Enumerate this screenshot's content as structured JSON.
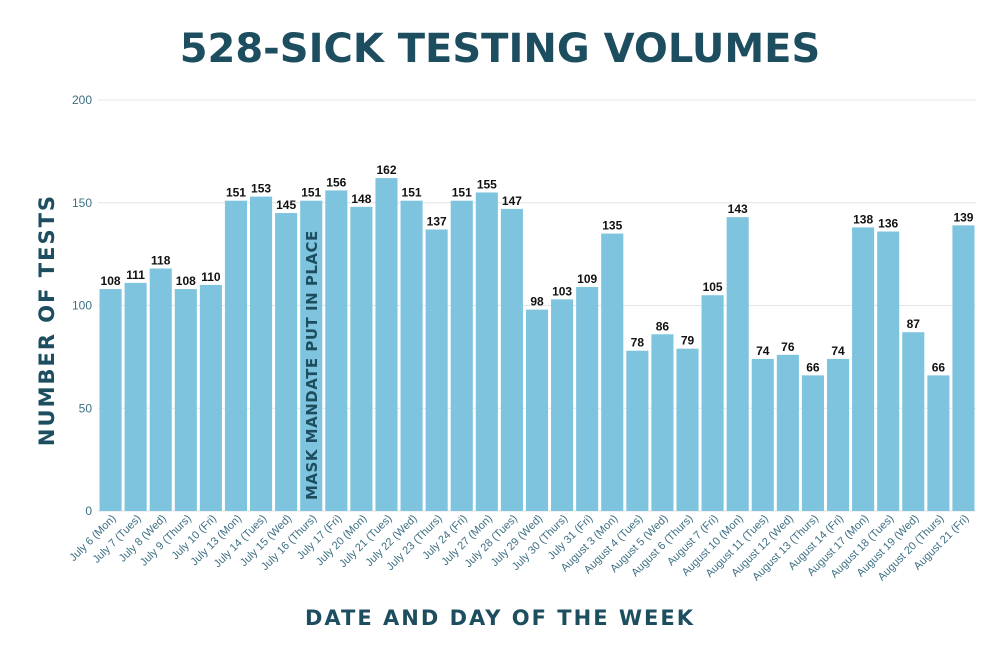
{
  "colors": {
    "title": "#1d4e5f",
    "bar": "#7ec4de",
    "grid": "#e2e6e8",
    "axis_text": "#3d6f82",
    "value_label": "#111111",
    "annotation": "#1d4e5f"
  },
  "chart_data": {
    "type": "bar",
    "title": "528-SICK TESTING VOLUMES",
    "xlabel": "DATE AND DAY OF THE WEEK",
    "ylabel": "NUMBER OF TESTS",
    "ylim": [
      0,
      200
    ],
    "yticks": [
      0,
      50,
      100,
      150,
      200
    ],
    "grid": true,
    "categories": [
      "July 6 (Mon)",
      "July 7 (Tues)",
      "July 8 (Wed)",
      "July 9 (Thurs)",
      "July 10 (Fri)",
      "July 13 (Mon)",
      "July 14 (Tues)",
      "July 15 (Wed)",
      "July 16 (Thurs)",
      "July 17 (Fri)",
      "July 20 (Mon)",
      "July 21 (Tues)",
      "July 22 (Wed)",
      "July 23 (Thurs)",
      "July 24 (Fri)",
      "July 27 (Mon)",
      "July 28 (Tues)",
      "July 29 (Wed)",
      "July 30 (Thurs)",
      "July 31 (Fri)",
      "August 3 (Mon)",
      "August 4 (Tues)",
      "August 5 (Wed)",
      "August 6 (Thurs)",
      "August 7 (Fri)",
      "August 10 (Mon)",
      "August 11 (Tues)",
      "August 12 (Wed)",
      "August 13 (Thurs)",
      "August 14 (Fri)",
      "August 17 (Mon)",
      "August 18 (Tues)",
      "August 19 (Wed)",
      "August 20 (Thurs)",
      "August 21 (Fri)"
    ],
    "values": [
      108,
      111,
      118,
      108,
      110,
      151,
      153,
      145,
      151,
      156,
      148,
      162,
      151,
      137,
      151,
      155,
      147,
      98,
      103,
      109,
      135,
      78,
      86,
      79,
      105,
      143,
      74,
      76,
      66,
      74,
      138,
      136,
      87,
      66,
      139
    ],
    "annotation": {
      "text": "MASK MANDATE PUT IN PLACE",
      "category": "July 16 (Thurs)"
    }
  }
}
